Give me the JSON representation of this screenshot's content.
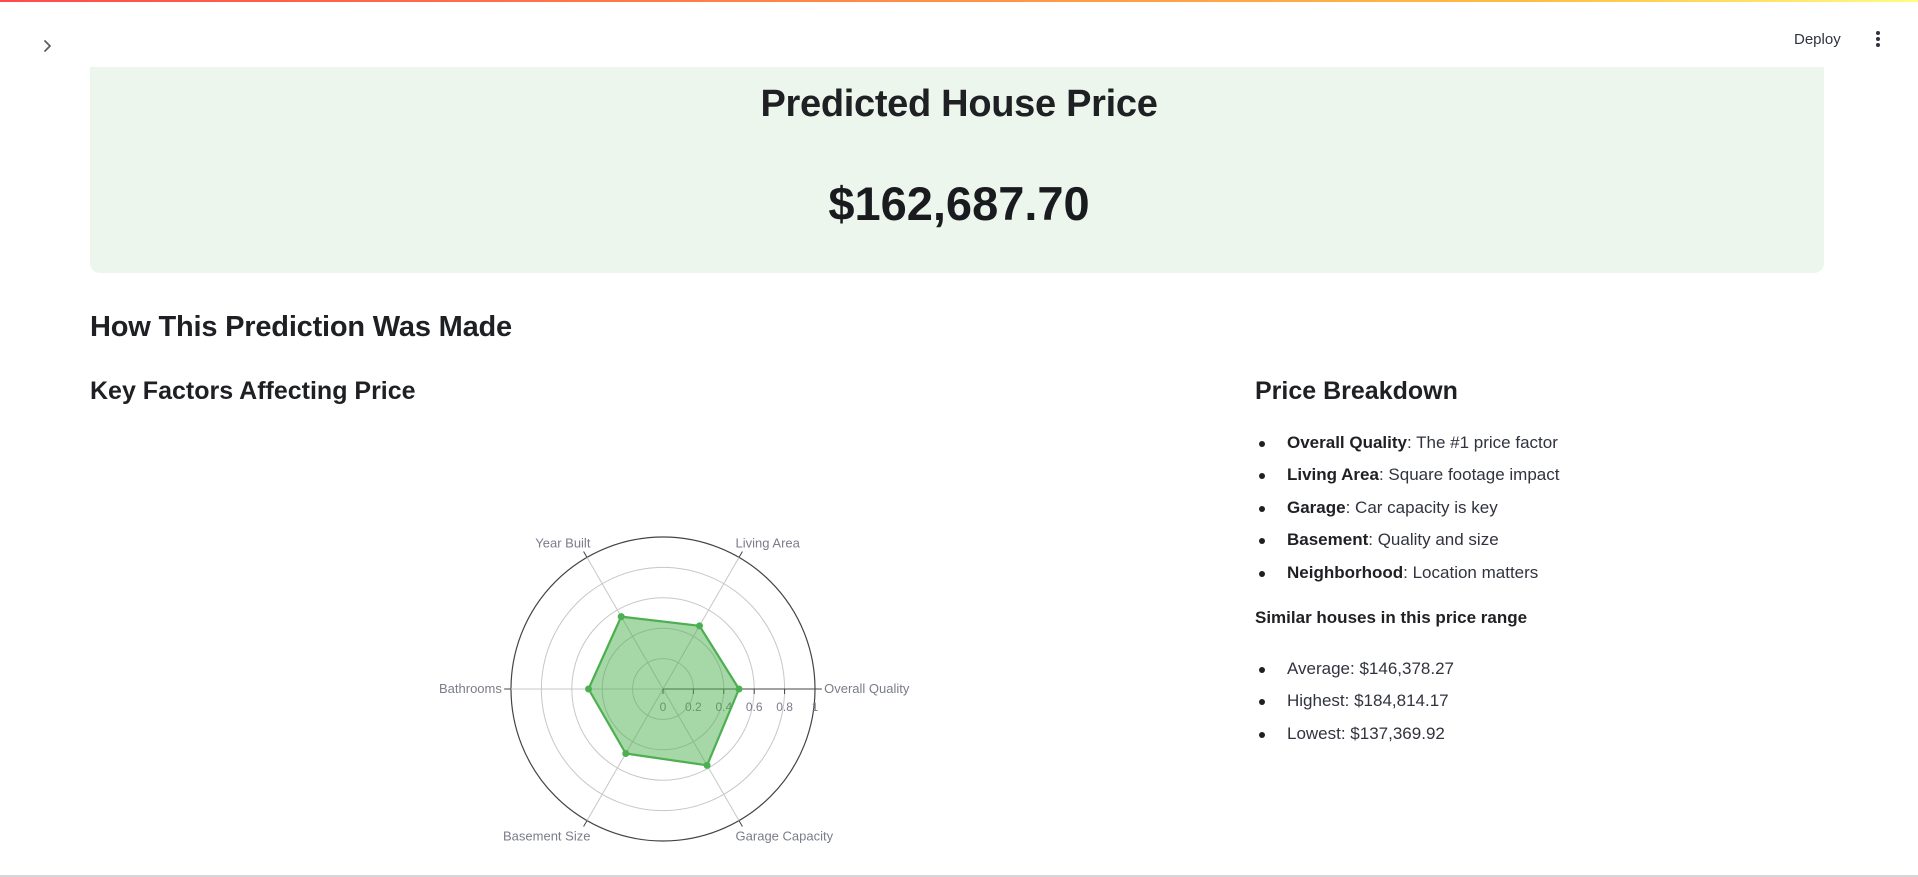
{
  "app": {
    "deploy_label": "Deploy",
    "accent_gradient": [
      "#ff4b4b",
      "#ffbd45",
      "#fffd80"
    ]
  },
  "icons": {
    "sidebar_toggle": "chevron-right-icon",
    "menu": "vertical-ellipsis-icon"
  },
  "result": {
    "title": "Predicted House Price",
    "price": "$162,687.70",
    "background": "#ecf6ec"
  },
  "explanation": {
    "heading": "How This Prediction Was Made"
  },
  "factors_chart": {
    "heading": "Key Factors Affecting Price"
  },
  "chart_data": {
    "type": "radar",
    "title": "",
    "axes": [
      "Overall Quality",
      "Living Area",
      "Year Built",
      "Bathrooms",
      "Basement Size",
      "Garage Capacity"
    ],
    "series": [
      {
        "values": [
          0.5,
          0.48,
          0.55,
          0.49,
          0.49,
          0.58
        ],
        "color": "#4caf50"
      }
    ],
    "radial_range": [
      0,
      1
    ],
    "radial_ticks": [
      "0",
      "0.2",
      "0.4",
      "0.6",
      "0.8",
      "1"
    ],
    "grid": true
  },
  "breakdown": {
    "heading": "Price Breakdown",
    "factors": [
      {
        "name": "Overall Quality",
        "desc": ": The #1 price factor"
      },
      {
        "name": "Living Area",
        "desc": ": Square footage impact"
      },
      {
        "name": "Garage",
        "desc": ": Car capacity is key"
      },
      {
        "name": "Basement",
        "desc": ": Quality and size"
      },
      {
        "name": "Neighborhood",
        "desc": ": Location matters"
      }
    ],
    "similar_heading": "Similar houses in this price range",
    "stats": [
      "Average: $146,378.27",
      "Highest: $184,814.17",
      "Lowest: $137,369.92"
    ]
  }
}
